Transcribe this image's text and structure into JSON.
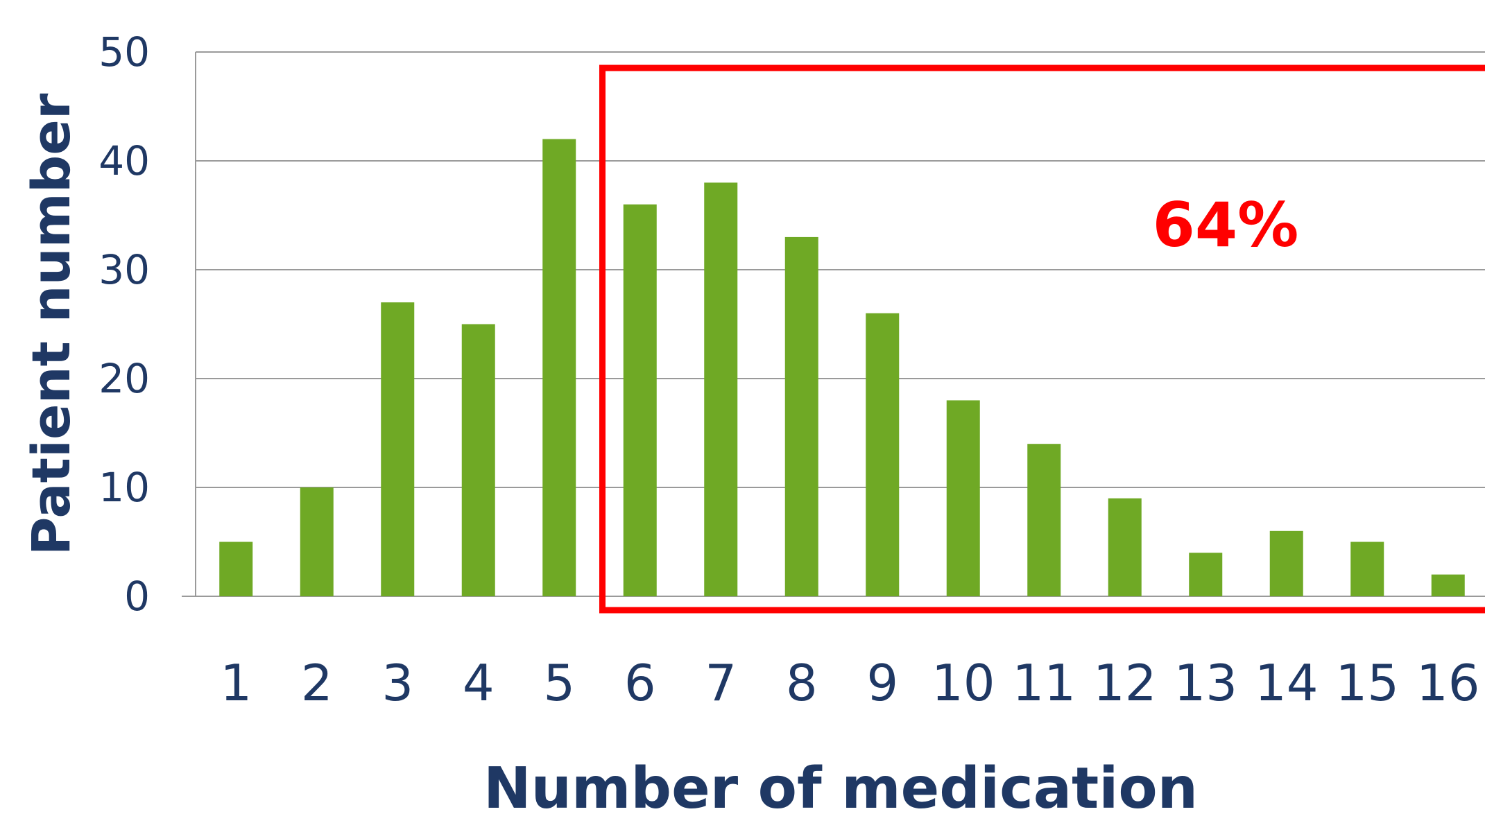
{
  "chart_data": {
    "type": "bar",
    "title": "",
    "xlabel": "Number of medication",
    "ylabel": "Patient number",
    "categories": [
      "1",
      "2",
      "3",
      "4",
      "5",
      "6",
      "7",
      "8",
      "9",
      "10",
      "11",
      "12",
      "13",
      "14",
      "15",
      "16"
    ],
    "series": [
      {
        "values": [
          5,
          10,
          27,
          25,
          42,
          36,
          38,
          33,
          26,
          18,
          14,
          9,
          4,
          6,
          5,
          2
        ]
      }
    ],
    "ylim": [
      0,
      50
    ],
    "yticks": [
      "0",
      "10",
      "20",
      "30",
      "40",
      "50"
    ],
    "grid": true,
    "bar_color": "#6fa925",
    "text_color": "#1f3864",
    "gridline_color": "#9a9a9a",
    "highlight": {
      "from_category": "6",
      "to_category": "16",
      "label": "64%",
      "color": "#ff0000"
    }
  }
}
